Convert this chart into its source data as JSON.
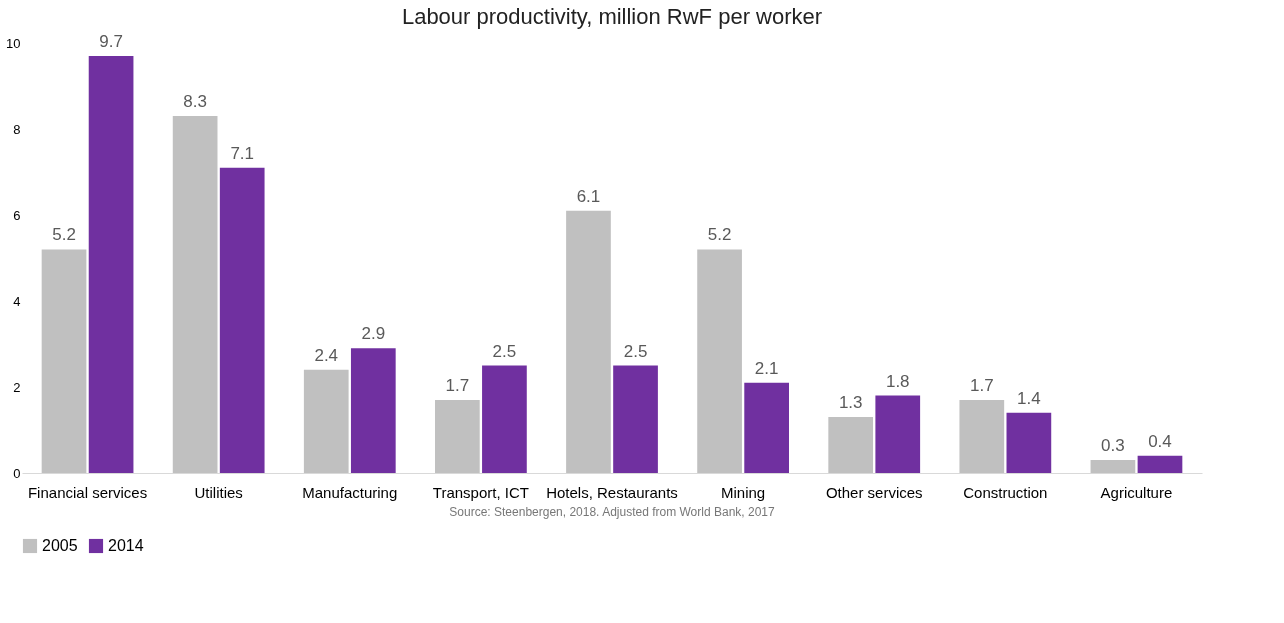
{
  "chart_data": {
    "type": "bar",
    "title": "Labour productivity, million RwF per worker",
    "categories": [
      "Financial services",
      "Utilities",
      "Manufacturing",
      "Transport, ICT",
      "Hotels, Restaurants",
      "Mining",
      "Other services",
      "Construction",
      "Agriculture"
    ],
    "series": [
      {
        "name": "2005",
        "color": "#c0c0c0",
        "values": [
          5.2,
          8.3,
          2.4,
          1.7,
          6.1,
          5.2,
          1.3,
          1.7,
          0.3
        ]
      },
      {
        "name": "2014",
        "color": "#7030a0",
        "values": [
          9.7,
          7.1,
          2.9,
          2.5,
          2.5,
          2.1,
          1.8,
          1.4,
          0.4
        ]
      }
    ],
    "ylim": [
      0,
      10
    ],
    "yticks": [
      0,
      2,
      4,
      6,
      8,
      10
    ],
    "grid": false,
    "legend": "bottom",
    "data_labels": true,
    "annotations": [
      "Source: Steenbergen, 2018. Adjusted from World Bank, 2017"
    ]
  }
}
